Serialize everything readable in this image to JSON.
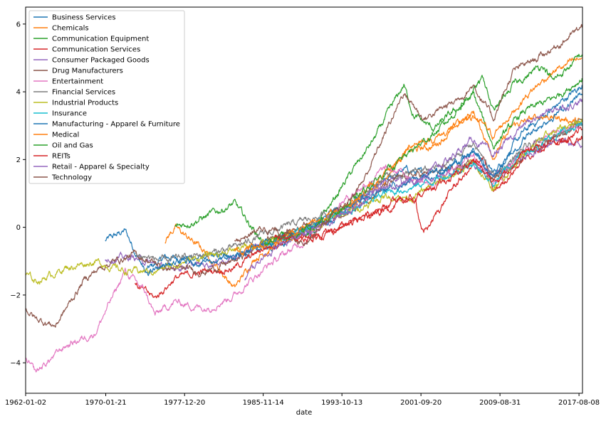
{
  "chart_data": {
    "type": "line",
    "title": "",
    "xlabel": "date",
    "ylabel": "",
    "x_tick_labels": [
      "1962-01-02",
      "1970-01-21",
      "1977-12-20",
      "1985-11-14",
      "1993-10-13",
      "2001-09-20",
      "2009-08-31",
      "2017-08-08"
    ],
    "x_tick_years": [
      1962.0,
      1970.05,
      1977.97,
      1985.87,
      1993.78,
      2001.72,
      2009.66,
      2017.6
    ],
    "xlim": [
      1962.0,
      2017.95
    ],
    "ylim": [
      -4.9,
      6.5
    ],
    "y_ticks": [
      -4,
      -2,
      0,
      2,
      4,
      6
    ],
    "grid": false,
    "legend_position": "top-left",
    "series": [
      {
        "name": "Business Services",
        "color": "#1f77b4",
        "x": [
          1970.0,
          1972.0,
          1974.0,
          1976.0,
          1980.0,
          1984.0,
          1988.0,
          1991.0,
          1994.0,
          1998.0,
          2000.0,
          2003.0,
          2007.0,
          2009.0,
          2012.0,
          2015.0,
          2017.9
        ],
        "y": [
          -0.4,
          -0.1,
          -1.3,
          -0.9,
          -0.9,
          -0.8,
          -0.4,
          -0.1,
          0.5,
          1.3,
          1.7,
          1.5,
          2.3,
          1.6,
          2.8,
          3.5,
          4.2
        ]
      },
      {
        "name": "Chemicals",
        "color": "#ff7f0e",
        "x": [
          1976.0,
          1977.0,
          1980.0,
          1983.0,
          1985.0,
          1988.0,
          1991.0,
          1994.0,
          1998.0,
          2000.0,
          2003.0,
          2007.0,
          2009.0,
          2011.0,
          2014.0,
          2017.9
        ],
        "y": [
          -0.4,
          0.0,
          -0.7,
          -1.8,
          -0.9,
          -0.4,
          0.0,
          0.5,
          1.4,
          2.2,
          2.4,
          3.4,
          2.1,
          3.0,
          3.3,
          3.1
        ]
      },
      {
        "name": "Communication Equipment",
        "color": "#2ca02c",
        "x": [
          1977.0,
          1980.0,
          1983.0,
          1986.0,
          1988.0,
          1991.0,
          1994.0,
          1997.0,
          2000.0,
          2001.0,
          2003.0,
          2007.0,
          2009.0,
          2012.0,
          2015.0,
          2017.9
        ],
        "y": [
          0.0,
          0.3,
          0.7,
          -0.5,
          -0.2,
          -0.1,
          1.3,
          2.6,
          4.2,
          3.3,
          2.9,
          3.9,
          2.4,
          3.4,
          3.8,
          4.4
        ]
      },
      {
        "name": "Communication Services",
        "color": "#d62728",
        "x": [
          1973.0,
          1975.0,
          1977.0,
          1980.0,
          1983.0,
          1986.0,
          1989.0,
          1992.0,
          1995.0,
          1998.0,
          2001.0,
          2002.0,
          2005.0,
          2008.0,
          2009.0,
          2012.0,
          2015.0,
          2017.9
        ],
        "y": [
          -1.7,
          -2.1,
          -1.5,
          -1.3,
          -1.2,
          -0.6,
          -0.3,
          -0.2,
          0.2,
          0.5,
          0.9,
          -0.2,
          1.2,
          2.1,
          1.0,
          2.0,
          2.5,
          2.9
        ]
      },
      {
        "name": "Consumer Packaged Goods",
        "color": "#9467bd",
        "x": [
          1970.0,
          1973.0,
          1976.0,
          1980.0,
          1983.0,
          1986.0,
          1989.0,
          1992.0,
          1995.0,
          1998.0,
          2001.0,
          2004.0,
          2007.0,
          2009.0,
          2012.0,
          2015.0,
          2017.9
        ],
        "y": [
          -0.9,
          -0.9,
          -1.2,
          -1.1,
          -0.9,
          -0.5,
          -0.2,
          0.2,
          0.7,
          1.4,
          1.3,
          1.5,
          1.9,
          1.5,
          2.1,
          2.5,
          2.4
        ]
      },
      {
        "name": "Drug Manufacturers",
        "color": "#8c564b",
        "x": [
          1962.0,
          1963.0,
          1965.0,
          1968.0,
          1970.0,
          1973.0,
          1976.0,
          1980.0,
          1983.0,
          1986.0,
          1990.0,
          1994.0,
          1998.0,
          2000.0,
          2003.0,
          2007.0,
          2009.0,
          2012.0,
          2015.0,
          2017.9
        ],
        "y": [
          -2.4,
          -2.7,
          -2.9,
          -1.5,
          -1.1,
          -0.8,
          -1.2,
          -1.3,
          -1.0,
          -0.4,
          0.1,
          0.3,
          1.2,
          1.5,
          1.6,
          1.9,
          1.4,
          2.1,
          2.7,
          3.0
        ]
      },
      {
        "name": "Entertainment",
        "color": "#e377c2",
        "x": [
          1962.0,
          1963.0,
          1966.0,
          1969.0,
          1972.0,
          1974.0,
          1975.0,
          1977.0,
          1980.0,
          1983.0,
          1986.0,
          1990.0,
          1994.0,
          1998.0,
          2000.0,
          2003.0,
          2007.0,
          2009.0,
          2012.0,
          2015.0,
          2017.9
        ],
        "y": [
          -3.9,
          -4.3,
          -3.5,
          -3.1,
          -1.3,
          -1.9,
          -2.6,
          -2.2,
          -2.4,
          -2.0,
          -1.2,
          -0.4,
          0.8,
          1.7,
          1.6,
          1.2,
          2.2,
          1.3,
          2.2,
          2.8,
          3.0
        ]
      },
      {
        "name": "Financial Services",
        "color": "#7f7f7f",
        "x": [
          1973.0,
          1976.0,
          1980.0,
          1983.0,
          1986.0,
          1990.0,
          1994.0,
          1998.0,
          2001.0,
          2004.0,
          2007.0,
          2009.0,
          2012.0,
          2015.0,
          2017.9
        ],
        "y": [
          -0.8,
          -1.0,
          -0.8,
          -0.6,
          -0.2,
          0.2,
          0.5,
          1.5,
          1.6,
          1.8,
          2.5,
          1.5,
          2.3,
          2.7,
          3.2
        ]
      },
      {
        "name": "Industrial Products",
        "color": "#bcbd22",
        "x": [
          1962.0,
          1963.0,
          1966.0,
          1969.0,
          1972.0,
          1975.0,
          1978.0,
          1981.0,
          1984.0,
          1987.0,
          1990.0,
          1994.0,
          1998.0,
          2001.0,
          2004.0,
          2007.0,
          2009.0,
          2012.0,
          2015.0,
          2017.9
        ],
        "y": [
          -1.4,
          -1.6,
          -1.2,
          -1.0,
          -1.3,
          -1.3,
          -1.0,
          -0.8,
          -0.6,
          -0.4,
          -0.1,
          0.4,
          0.9,
          0.9,
          1.4,
          1.9,
          1.1,
          2.2,
          2.8,
          3.2
        ]
      },
      {
        "name": "Insurance",
        "color": "#17becf",
        "x": [
          1986.0,
          1989.0,
          1992.0,
          1995.0,
          1998.0,
          2001.0,
          2004.0,
          2007.0,
          2009.0,
          2012.0,
          2015.0,
          2017.9
        ],
        "y": [
          -0.5,
          -0.2,
          0.2,
          0.5,
          1.0,
          1.2,
          1.5,
          1.9,
          1.3,
          2.2,
          2.7,
          3.0
        ]
      },
      {
        "name": "Manufacturing - Apparel & Furniture",
        "color": "#1f77b4",
        "x": [
          1974.0,
          1976.0,
          1980.0,
          1983.0,
          1986.0,
          1990.0,
          1994.0,
          1998.0,
          2001.0,
          2004.0,
          2007.0,
          2009.0,
          2012.0,
          2015.0,
          2017.9
        ],
        "y": [
          -1.4,
          -1.1,
          -1.0,
          -0.9,
          -0.5,
          0.0,
          0.6,
          1.1,
          1.4,
          1.7,
          2.2,
          1.5,
          2.6,
          3.3,
          3.9
        ]
      },
      {
        "name": "Medical",
        "color": "#ff7f0e",
        "x": [
          1983.0,
          1986.0,
          1990.0,
          1994.0,
          1998.0,
          2001.0,
          2003.0,
          2007.0,
          2009.0,
          2012.0,
          2015.0,
          2017.9
        ],
        "y": [
          -0.7,
          -0.5,
          0.0,
          0.6,
          1.5,
          2.5,
          2.6,
          3.3,
          2.7,
          3.8,
          4.6,
          5.0
        ]
      },
      {
        "name": "Oil and Gas",
        "color": "#2ca02c",
        "x": [
          1986.0,
          1989.0,
          1992.0,
          1995.0,
          1998.0,
          2001.0,
          2004.0,
          2008.0,
          2009.0,
          2011.0,
          2014.0,
          2015.0,
          2017.9
        ],
        "y": [
          -0.5,
          -0.2,
          0.2,
          0.8,
          1.6,
          2.3,
          3.0,
          4.4,
          3.4,
          4.2,
          4.8,
          4.3,
          5.1
        ]
      },
      {
        "name": "REITs",
        "color": "#d62728",
        "x": [
          1987.0,
          1990.0,
          1993.0,
          1996.0,
          1999.0,
          2002.0,
          2005.0,
          2007.0,
          2009.0,
          2012.0,
          2015.0,
          2017.9
        ],
        "y": [
          -0.3,
          -0.4,
          -0.1,
          0.3,
          0.7,
          1.0,
          1.5,
          2.0,
          1.3,
          2.2,
          2.5,
          2.6
        ]
      },
      {
        "name": "Retail - Apparel & Specialty",
        "color": "#9467bd",
        "x": [
          1984.0,
          1986.0,
          1990.0,
          1994.0,
          1998.0,
          2001.0,
          2004.0,
          2007.0,
          2009.0,
          2012.0,
          2015.0,
          2017.9
        ],
        "y": [
          -1.5,
          -0.8,
          -0.2,
          0.4,
          1.2,
          1.4,
          1.9,
          2.6,
          2.1,
          3.0,
          3.5,
          3.7
        ]
      },
      {
        "name": "Technology",
        "color": "#8c564b",
        "x": [
          1983.0,
          1986.0,
          1990.0,
          1994.0,
          1996.0,
          2000.0,
          2002.0,
          2005.0,
          2007.0,
          2009.0,
          2011.0,
          2014.0,
          2016.0,
          2017.9
        ],
        "y": [
          -0.4,
          0.0,
          -0.4,
          0.6,
          1.4,
          4.0,
          3.2,
          3.7,
          4.2,
          3.2,
          4.6,
          5.1,
          5.5,
          5.9
        ]
      }
    ]
  }
}
